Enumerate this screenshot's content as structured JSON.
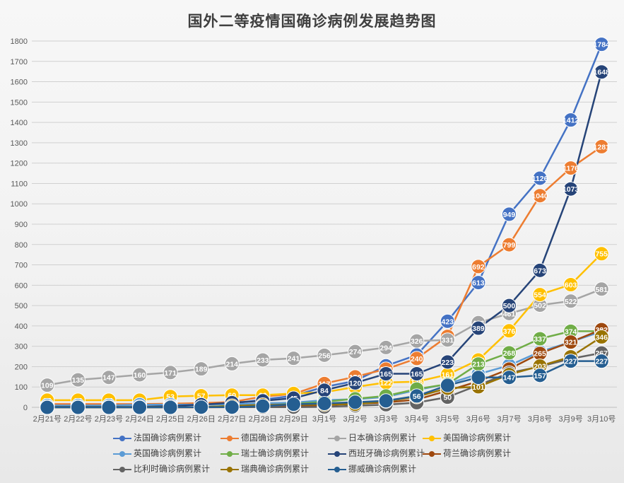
{
  "chart_data": {
    "type": "line",
    "title": "国外二等疫情国确诊病例发展趋势图",
    "xlabel": "",
    "ylabel": "",
    "ylim": [
      0,
      1800
    ],
    "yticks": [
      0,
      100,
      200,
      300,
      400,
      500,
      600,
      700,
      800,
      900,
      1000,
      1100,
      1200,
      1300,
      1400,
      1500,
      1600,
      1700,
      1800
    ],
    "grid": true,
    "legend_position": "bottom",
    "categories": [
      "2月21号",
      "2月22号",
      "2月23号",
      "2月24日",
      "2月25日",
      "2月26日",
      "2月27日",
      "2月28日",
      "2月29日",
      "3月1号",
      "3月2号",
      "3月3号",
      "3月4号",
      "3月5号",
      "3月6号",
      "3月7号",
      "3月8号",
      "3月9号",
      "3月10号"
    ],
    "series": [
      {
        "name": "法国确诊病例累计",
        "color": "#4472C4",
        "values": [
          12,
          12,
          12,
          12,
          12,
          12,
          18,
          38,
          57,
          100,
          130,
          204,
          257,
          423,
          613,
          949,
          1126,
          1412,
          1784
        ]
      },
      {
        "name": "德国确诊病例累计",
        "color": "#ED7D31",
        "values": [
          16,
          16,
          16,
          16,
          18,
          21,
          26,
          53,
          66,
          117,
          150,
          188,
          240,
          349,
          692,
          799,
          1040,
          1176,
          1281
        ]
      },
      {
        "name": "日本确诊病例累计",
        "color": "#A5A5A5",
        "values": [
          109,
          135,
          147,
          160,
          171,
          189,
          214,
          233,
          241,
          256,
          274,
          294,
          326,
          331,
          416,
          461,
          502,
          522,
          581
        ]
      },
      {
        "name": "美国确诊病例累计",
        "color": "#FFC000",
        "values": [
          35,
          35,
          35,
          35,
          53,
          57,
          60,
          60,
          68,
          74,
          100,
          122,
          126,
          161,
          233,
          376,
          554,
          603,
          755
        ]
      },
      {
        "name": "英国确诊病例累计",
        "color": "#5B9BD5",
        "values": [
          9,
          9,
          9,
          13,
          13,
          13,
          15,
          20,
          23,
          35,
          40,
          51,
          85,
          115,
          163,
          206,
          273,
          321,
          373
        ]
      },
      {
        "name": "瑞士确诊病例累计",
        "color": "#70AD47",
        "values": [
          0,
          0,
          0,
          0,
          1,
          1,
          8,
          8,
          18,
          27,
          42,
          56,
          90,
          114,
          213,
          268,
          337,
          374,
          374
        ]
      },
      {
        "name": "西班牙确诊病例累计",
        "color": "#264478",
        "values": [
          2,
          2,
          2,
          2,
          6,
          13,
          23,
          32,
          45,
          84,
          120,
          165,
          165,
          223,
          389,
          500,
          673,
          1073,
          1648
        ]
      },
      {
        "name": "荷兰确诊病例累计",
        "color": "#9E480E",
        "values": [
          0,
          0,
          0,
          0,
          0,
          0,
          1,
          1,
          6,
          10,
          18,
          24,
          38,
          82,
          128,
          188,
          265,
          321,
          382
        ]
      },
      {
        "name": "比利时确诊病例累计",
        "color": "#636363",
        "values": [
          1,
          1,
          1,
          1,
          1,
          1,
          1,
          1,
          1,
          2,
          8,
          13,
          23,
          50,
          109,
          169,
          200,
          239,
          267
        ]
      },
      {
        "name": "瑞典确诊病例累计",
        "color": "#997300",
        "values": [
          1,
          1,
          1,
          1,
          1,
          1,
          7,
          12,
          13,
          14,
          15,
          30,
          52,
          94,
          101,
          161,
          203,
          248,
          346
        ]
      },
      {
        "name": "挪威确诊病例累计",
        "color": "#255E91",
        "values": [
          0,
          0,
          0,
          0,
          0,
          1,
          1,
          6,
          15,
          19,
          25,
          32,
          56,
          108,
          147,
          147,
          157,
          227,
          227
        ]
      }
    ],
    "label_shown": [
      [
        1,
        1,
        1,
        1,
        1,
        1,
        1,
        1,
        1,
        1,
        1,
        1,
        1,
        1,
        1,
        1,
        1,
        1,
        1
      ],
      [
        1,
        1,
        1,
        1,
        1,
        1,
        1,
        1,
        1,
        1,
        1,
        1,
        1,
        1,
        1,
        1,
        1,
        1,
        1
      ],
      [
        1,
        1,
        1,
        1,
        1,
        1,
        1,
        1,
        1,
        1,
        1,
        1,
        1,
        1,
        1,
        1,
        1,
        1,
        1
      ],
      [
        1,
        1,
        1,
        1,
        1,
        1,
        1,
        1,
        1,
        1,
        1,
        1,
        1,
        1,
        1,
        1,
        1,
        1,
        1
      ],
      [
        0,
        0,
        0,
        0,
        0,
        0,
        0,
        0,
        1,
        1,
        1,
        1,
        0,
        1,
        1,
        1,
        0,
        0,
        0
      ],
      [
        0,
        0,
        0,
        0,
        0,
        0,
        0,
        0,
        0,
        0,
        0,
        0,
        0,
        1,
        1,
        1,
        1,
        1,
        0
      ],
      [
        1,
        1,
        1,
        1,
        1,
        1,
        1,
        1,
        1,
        1,
        1,
        1,
        1,
        1,
        1,
        1,
        1,
        1,
        1
      ],
      [
        0,
        0,
        0,
        0,
        0,
        0,
        0,
        0,
        0,
        0,
        0,
        0,
        0,
        1,
        0,
        1,
        1,
        1,
        1
      ],
      [
        0,
        0,
        0,
        0,
        0,
        0,
        0,
        0,
        0,
        0,
        0,
        0,
        0,
        1,
        0,
        0,
        0,
        0,
        1
      ],
      [
        0,
        0,
        0,
        0,
        0,
        0,
        0,
        0,
        0,
        0,
        0,
        0,
        0,
        0,
        1,
        0,
        1,
        1,
        1
      ],
      [
        0,
        0,
        0,
        0,
        0,
        0,
        0,
        0,
        0,
        0,
        0,
        0,
        1,
        0,
        0,
        1,
        1,
        1,
        1
      ]
    ]
  }
}
